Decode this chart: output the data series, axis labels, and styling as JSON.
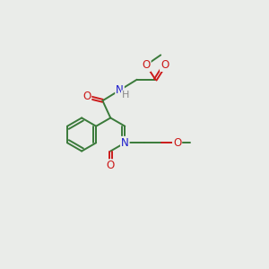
{
  "bg_color": "#eaece9",
  "atom_colors": {
    "C": "#3a7a3a",
    "N": "#1a1acc",
    "O": "#cc1a1a",
    "H": "#888888"
  },
  "bond_color": "#3a7a3a",
  "fig_size": [
    3.0,
    3.0
  ],
  "dpi": 100,
  "bond_lw": 1.4,
  "font_size": 8.5
}
